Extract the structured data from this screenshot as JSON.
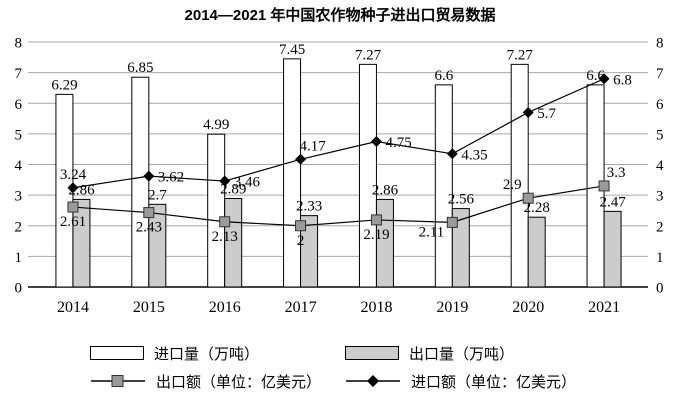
{
  "title": "2014—2021 年中国农作物种子进出口贸易数据",
  "colors": {
    "axis": "#000000",
    "grid": "#a8a8a8",
    "bar_import_fill": "#ffffff",
    "bar_export_fill": "#cccccc",
    "line_color": "#000000",
    "square_marker_fill": "#9a9a9a",
    "diamond_marker_fill": "#000000",
    "text": "#000000"
  },
  "chart_data": {
    "type": "combo-bar-line",
    "title": "2014—2021 年中国农作物种子进出口贸易数据",
    "xlabel": "",
    "ylabel": "",
    "categories": [
      "2014",
      "2015",
      "2016",
      "2017",
      "2018",
      "2019",
      "2020",
      "2021"
    ],
    "series": [
      {
        "name": "进口量（万吨）",
        "type": "bar",
        "color": "#ffffff",
        "values": [
          6.29,
          6.85,
          4.99,
          7.45,
          7.27,
          6.6,
          7.27,
          6.6
        ]
      },
      {
        "name": "出口量（万吨）",
        "type": "bar",
        "color": "#cccccc",
        "values": [
          2.86,
          2.7,
          2.89,
          2.33,
          2.86,
          2.56,
          2.28,
          2.47
        ]
      },
      {
        "name": "出口额（单位：亿美元）",
        "type": "line",
        "marker": "square",
        "values": [
          2.61,
          2.43,
          2.13,
          2,
          2.19,
          2.11,
          2.9,
          3.3
        ],
        "label_pos": [
          "below",
          "below",
          "below",
          "below",
          "below",
          "below-left",
          "above-left",
          "above-right"
        ]
      },
      {
        "name": "进口额（单位：亿美元）",
        "type": "line",
        "marker": "diamond",
        "values": [
          3.24,
          3.62,
          3.46,
          4.17,
          4.75,
          4.35,
          5.7,
          6.8
        ],
        "label_pos": [
          "above",
          "right",
          "right",
          "above-right",
          "right",
          "right",
          "right",
          "right"
        ]
      }
    ],
    "ylim": [
      0,
      8
    ],
    "yticks": [
      0,
      1,
      2,
      3,
      4,
      5,
      6,
      7,
      8
    ],
    "dual_axis": true,
    "grid": true,
    "legend_position": "bottom"
  },
  "legend": {
    "items": [
      {
        "label": "进口量（万吨）",
        "swatch": "white-bar"
      },
      {
        "label": "出口量（万吨）",
        "swatch": "gray-bar"
      },
      {
        "label": "出口额（单位：亿美元）",
        "swatch": "square-line"
      },
      {
        "label": "进口额（单位：亿美元）",
        "swatch": "diamond-line"
      }
    ]
  }
}
